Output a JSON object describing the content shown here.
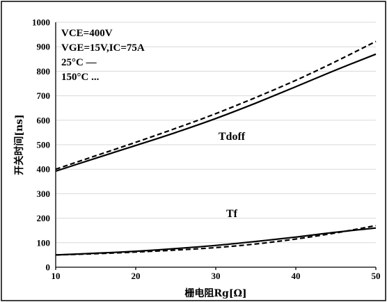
{
  "chart_data": {
    "type": "line",
    "title": "",
    "xlabel": "栅电阻Rg[Ω]",
    "ylabel": "开关时间[ns]",
    "xlim": [
      10,
      50
    ],
    "ylim": [
      0,
      1000
    ],
    "xticks": [
      10,
      20,
      30,
      40,
      50
    ],
    "yticks": [
      0,
      100,
      200,
      300,
      400,
      500,
      600,
      700,
      800,
      900,
      1000
    ],
    "grid": "horizontal",
    "annotations": [
      "VCE=400V",
      "VGE=15V,IC=75A",
      "25°C —",
      "150°C ..."
    ],
    "series_labels": [
      {
        "text": "Tdoff",
        "x": 32,
        "y": 520
      },
      {
        "text": "Tf",
        "x": 32,
        "y": 205
      }
    ],
    "series": [
      {
        "name": "Tdoff",
        "condition": "25°C",
        "style": "solid",
        "x": [
          10,
          15,
          20,
          25,
          30,
          35,
          40,
          45,
          50
        ],
        "y": [
          392,
          445,
          497,
          550,
          607,
          670,
          737,
          805,
          870
        ]
      },
      {
        "name": "Tdoff",
        "condition": "150°C",
        "style": "dashed",
        "x": [
          10,
          15,
          20,
          25,
          30,
          35,
          40,
          45,
          50
        ],
        "y": [
          400,
          455,
          510,
          567,
          627,
          693,
          763,
          840,
          922
        ]
      },
      {
        "name": "Tf",
        "condition": "25°C",
        "style": "solid",
        "x": [
          10,
          15,
          20,
          25,
          30,
          35,
          40,
          45,
          50
        ],
        "y": [
          50,
          57,
          65,
          76,
          89,
          105,
          123,
          143,
          160
        ]
      },
      {
        "name": "Tf",
        "condition": "150°C",
        "style": "dashed",
        "x": [
          10,
          15,
          20,
          25,
          30,
          35,
          40,
          45,
          50
        ],
        "y": [
          50,
          55,
          62,
          70,
          80,
          95,
          115,
          140,
          170
        ]
      }
    ]
  }
}
